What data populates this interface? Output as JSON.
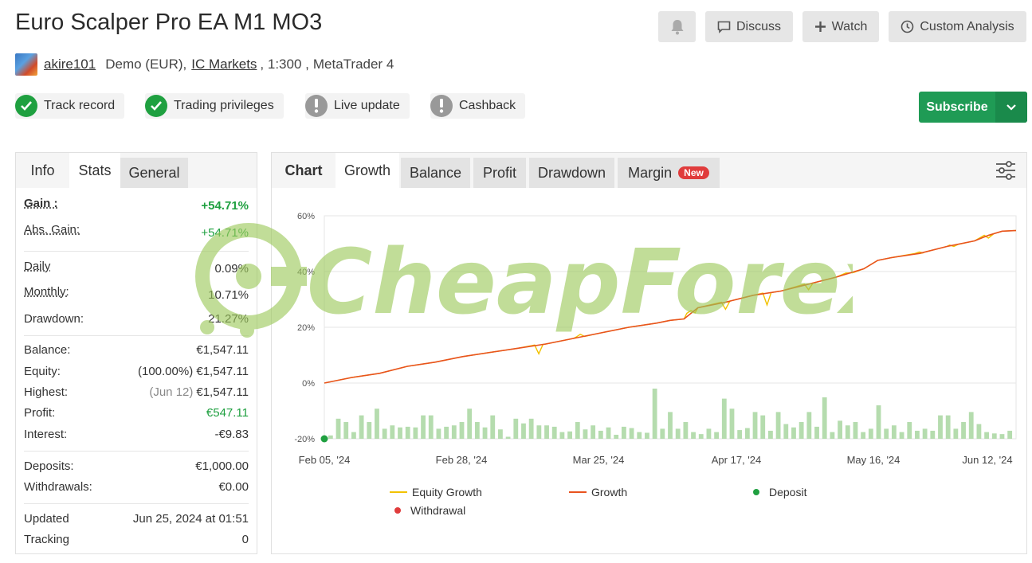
{
  "header": {
    "title": "Euro Scalper Pro EA M1 MO3",
    "buttons": {
      "discuss": "Discuss",
      "watch": "Watch",
      "custom_analysis": "Custom Analysis"
    }
  },
  "meta": {
    "username": "akire101",
    "account_type": "Demo (EUR),",
    "broker": "IC Markets",
    "leverage": ", 1:300 ,",
    "platform": "MetaTrader 4"
  },
  "badges": [
    {
      "label": "Track record",
      "status": "ok"
    },
    {
      "label": "Trading privileges",
      "status": "ok"
    },
    {
      "label": "Live update",
      "status": "warn"
    },
    {
      "label": "Cashback",
      "status": "warn"
    }
  ],
  "subscribe": {
    "label": "Subscribe"
  },
  "left_tabs": [
    "Info",
    "Stats",
    "General"
  ],
  "stats": {
    "gain": {
      "label": "Gain :",
      "value": "+54.71%"
    },
    "abs_gain": {
      "label": "Abs. Gain:",
      "value": "+54.71%"
    },
    "daily": {
      "label": "Daily",
      "value": "0.09%"
    },
    "monthly": {
      "label": "Monthly:",
      "value": "10.71%"
    },
    "drawdown": {
      "label": "Drawdown:",
      "value": "21.27%"
    },
    "balance": {
      "label": "Balance:",
      "value": "€1,547.11"
    },
    "equity": {
      "label": "Equity:",
      "note": "(100.00%)",
      "value": "€1,547.11"
    },
    "highest": {
      "label": "Highest:",
      "note": "(Jun 12)",
      "value": "€1,547.11"
    },
    "profit": {
      "label": "Profit:",
      "value": "€547.11"
    },
    "interest": {
      "label": "Interest:",
      "value": "-€9.83"
    },
    "deposits": {
      "label": "Deposits:",
      "value": "€1,000.00"
    },
    "withdrawals": {
      "label": "Withdrawals:",
      "value": "€0.00"
    },
    "updated": {
      "label": "Updated",
      "value": "Jun 25, 2024 at 01:51"
    },
    "tracking": {
      "label": "Tracking",
      "value": "0"
    }
  },
  "chart_tabs": {
    "chart": "Chart",
    "growth": "Growth",
    "balance": "Balance",
    "profit": "Profit",
    "drawdown": "Drawdown",
    "margin": "Margin",
    "new_badge": "New"
  },
  "watermark": "CheapForexEa",
  "colors": {
    "green": "#1f9b55",
    "growth_line": "#e8531e",
    "equity_line": "#f2c200",
    "bar": "#b5dcae",
    "deposit": "#1fa040",
    "withdrawal": "#e03c3c"
  },
  "chart_data": {
    "type": "line",
    "y_ticks": [
      "60%",
      "40%",
      "20%",
      "0%",
      "-20%"
    ],
    "ylim": [
      -20,
      60
    ],
    "x_labels": [
      "Feb 05, '24",
      "Feb 28, '24",
      "Mar 25, '24",
      "Apr 17, '24",
      "May 16, '24",
      "Jun 12, '24"
    ],
    "legend": [
      "Equity Growth",
      "Growth",
      "Deposit",
      "Withdrawal"
    ],
    "growth": {
      "x": [
        0,
        0.04,
        0.08,
        0.12,
        0.16,
        0.2,
        0.24,
        0.28,
        0.32,
        0.36,
        0.4,
        0.44,
        0.48,
        0.5,
        0.52,
        0.54,
        0.58,
        0.62,
        0.66,
        0.7,
        0.74,
        0.78,
        0.8,
        0.82,
        0.86,
        0.9,
        0.94,
        0.96,
        0.98,
        1
      ],
      "y": [
        0,
        2,
        3.5,
        6,
        7.5,
        9.5,
        11,
        12.5,
        14,
        16,
        18,
        20,
        21.5,
        22.5,
        23,
        27,
        29,
        31.5,
        33,
        35.5,
        38,
        41,
        44,
        45,
        46.5,
        49,
        51,
        53,
        54.5,
        54.7
      ]
    },
    "equity_dips": [
      {
        "x": 0.31,
        "y": 10.5
      },
      {
        "x": 0.37,
        "y": 17.5
      },
      {
        "x": 0.53,
        "y": 26
      },
      {
        "x": 0.58,
        "y": 26.5
      },
      {
        "x": 0.64,
        "y": 28
      },
      {
        "x": 0.7,
        "y": 33.5
      },
      {
        "x": 0.76,
        "y": 39.5
      },
      {
        "x": 0.86,
        "y": 47
      },
      {
        "x": 0.91,
        "y": 49
      },
      {
        "x": 0.96,
        "y": 52
      }
    ],
    "bars": [
      0.5,
      3,
      2.5,
      1,
      3.5,
      2.5,
      4.5,
      1.5,
      2,
      1.7,
      1.8,
      1.7,
      3.5,
      3.5,
      1.5,
      1.8,
      2,
      2.5,
      4.5,
      2.5,
      1.7,
      3.5,
      1.4,
      0.3,
      3,
      2.3,
      3,
      2,
      2,
      1.8,
      1,
      1.1,
      2.5,
      1.4,
      2,
      1.2,
      1.7,
      0.6,
      1.8,
      1.6,
      1,
      0.9,
      7.5,
      1.5,
      4,
      1.5,
      2.5,
      1,
      0.7,
      1.5,
      1,
      6,
      4.5,
      1.3,
      1.6,
      4,
      3.5,
      1.2,
      4,
      2.2,
      1.7,
      2.5,
      4,
      1.8,
      6.2,
      1,
      2.7,
      2,
      2.5,
      1,
      1.5,
      5,
      1.5,
      2,
      1,
      2.5,
      1.2,
      1.5,
      1.2,
      3.5,
      3.5,
      1.5,
      2.5,
      4,
      2.2,
      1,
      0.8,
      0.7,
      1.2
    ],
    "deposit_point": {
      "x": 0,
      "y": -20
    }
  }
}
